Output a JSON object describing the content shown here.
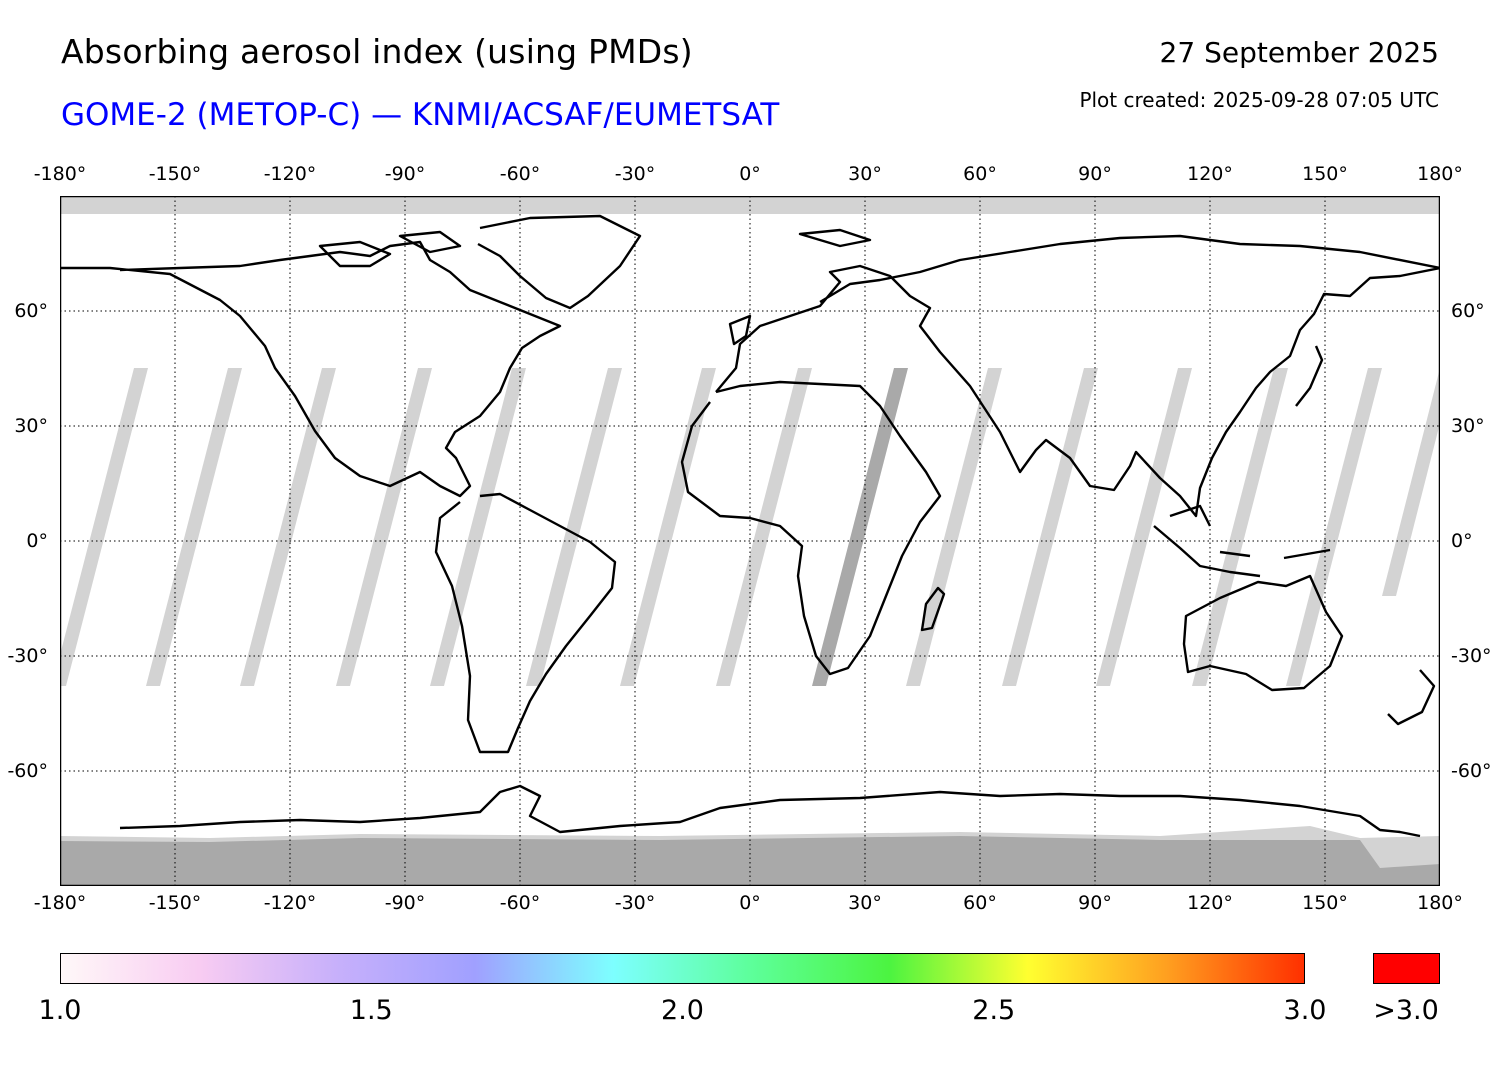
{
  "header": {
    "title": "Absorbing aerosol index (using PMDs)",
    "subtitle": "GOME-2 (METOP-C) — KNMI/ACSAF/EUMETSAT",
    "date": "27 September 2025",
    "created": "Plot created: 2025-09-28 07:05 UTC"
  },
  "map": {
    "lon_labels": [
      "-180°",
      "-150°",
      "-120°",
      "-90°",
      "-60°",
      "-30°",
      "0°",
      "30°",
      "60°",
      "90°",
      "120°",
      "150°",
      "180°"
    ],
    "lon_values": [
      -180,
      -150,
      -120,
      -90,
      -60,
      -30,
      0,
      30,
      60,
      90,
      120,
      150,
      180
    ],
    "lat_labels": [
      "60°",
      "30°",
      "0°",
      "-30°",
      "-60°"
    ],
    "lat_values": [
      60,
      30,
      0,
      -30,
      -60
    ],
    "lat_range": [
      -90,
      90
    ],
    "lon_range": [
      -180,
      180
    ],
    "no_data_color": "#d3d3d3",
    "dark_gap_color": "#a9a9a9",
    "coast_color": "#000000",
    "grid_style": "dotted"
  },
  "colorbar": {
    "tick_labels": [
      "1.0",
      "1.5",
      "2.0",
      "2.5",
      "3.0"
    ],
    "tick_values": [
      1.0,
      1.5,
      2.0,
      2.5,
      3.0
    ],
    "range": [
      1.0,
      3.0
    ],
    "over_label": ">3.0",
    "over_color": "#ff0000",
    "gradient_stops": [
      "#fff8f8",
      "#f8ccf2",
      "#c7b0fb",
      "#a0a0ff",
      "#7dffff",
      "#5dff9a",
      "#4cf440",
      "#ffff30",
      "#ffa020",
      "#ff3000"
    ]
  }
}
